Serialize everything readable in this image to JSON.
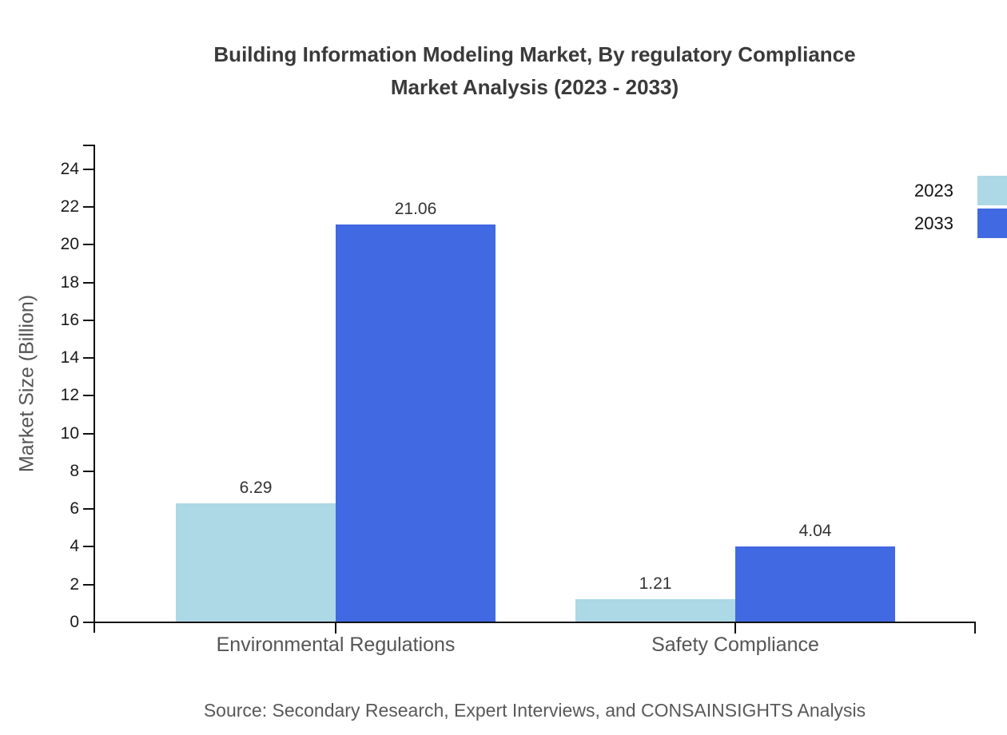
{
  "title": {
    "line1": "Building Information Modeling Market, By regulatory Compliance",
    "line2": "Market Analysis (2023 - 2033)"
  },
  "y_axis": {
    "label": "Market Size (Billion)"
  },
  "legend": {
    "position": "top-right",
    "items": [
      {
        "label": "2023",
        "color": "#ADD8E6"
      },
      {
        "label": "2033",
        "color": "#4169E1"
      }
    ]
  },
  "source": {
    "text": "Source: Secondary Research, Expert Interviews, and CONSAINSIGHTS Analysis"
  },
  "colors": {
    "axis": "#111111",
    "title_text": "#3a3a3a",
    "muted_text": "#555555",
    "source_text": "#595959",
    "series_2023": "#ADD8E6",
    "series_2033": "#4169E1"
  },
  "chart_data": {
    "type": "bar",
    "title": "Building Information Modeling Market, By regulatory Compliance Market Analysis (2023 - 2033)",
    "categories": [
      "Environmental Regulations",
      "Safety Compliance"
    ],
    "series": [
      {
        "name": "2023",
        "color": "#ADD8E6",
        "values": [
          6.29,
          1.21
        ]
      },
      {
        "name": "2033",
        "color": "#4169E1",
        "values": [
          21.06,
          4.04
        ]
      }
    ],
    "value_labels": [
      [
        "6.29",
        "1.21"
      ],
      [
        "21.06",
        "4.04"
      ]
    ],
    "xlabel": "",
    "ylabel": "Market Size (Billion)",
    "ylim": [
      0,
      25.3
    ],
    "yticks": [
      0,
      2,
      4,
      6,
      8,
      10,
      12,
      14,
      16,
      18,
      20,
      22,
      24
    ],
    "grid": false,
    "legend_position": "top-right"
  }
}
